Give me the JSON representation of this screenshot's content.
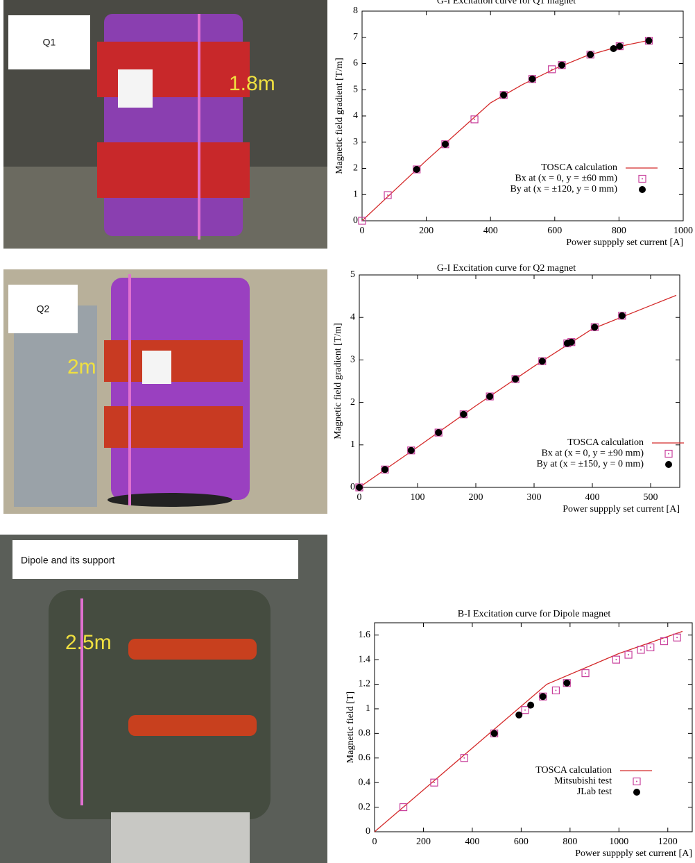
{
  "chart_data": [
    {
      "type": "scatter",
      "title": "G-I Excitation curve for Q1 magnet",
      "x_label": "Power suppply set current [A]",
      "y_label": "Magnetic field gradient [T/m]",
      "xlim": [
        0,
        1000
      ],
      "ylim": [
        0,
        8
      ],
      "xticks": [
        0,
        200,
        400,
        600,
        800,
        1000
      ],
      "yticks": [
        0,
        1,
        2,
        3,
        4,
        5,
        6,
        7,
        8
      ],
      "series": [
        {
          "name": "TOSCA calculation",
          "color": "#d42a2a",
          "marker": "line",
          "x": [
            0,
            100,
            200,
            300,
            400,
            500,
            600,
            700,
            800,
            900
          ],
          "values": [
            0,
            1.15,
            2.3,
            3.4,
            4.5,
            5.2,
            5.8,
            6.3,
            6.65,
            6.9
          ]
        },
        {
          "name": "Bx at (x = 0, y = ±60 mm)",
          "color": "#c8409c",
          "marker": "square",
          "x": [
            0,
            80,
            170,
            259,
            350,
            441,
            530,
            591,
            622,
            711,
            802,
            893
          ],
          "values": [
            0,
            0.98,
            1.96,
            2.92,
            3.87,
            4.8,
            5.41,
            5.78,
            5.94,
            6.34,
            6.66,
            6.87
          ]
        },
        {
          "name": "By at (x = ±120, y = 0 mm)",
          "color": "#000000",
          "marker": "circle",
          "x": [
            170,
            259,
            441,
            530,
            622,
            711,
            783,
            802,
            893
          ],
          "values": [
            1.96,
            2.92,
            4.8,
            5.41,
            5.94,
            6.34,
            6.57,
            6.66,
            6.87
          ]
        }
      ]
    },
    {
      "type": "scatter",
      "title": "G-I Excitation curve for Q2 magnet",
      "x_label": "Power suppply set current [A]",
      "y_label": "Magnetic field gradient [T/m]",
      "xlim": [
        0,
        550
      ],
      "ylim": [
        0,
        5
      ],
      "xticks": [
        0,
        100,
        200,
        300,
        400,
        500
      ],
      "yticks": [
        0,
        1,
        2,
        3,
        4,
        5
      ],
      "series": [
        {
          "name": "TOSCA calculation",
          "color": "#d42a2a",
          "marker": "line",
          "x": [
            0,
            100,
            200,
            300,
            400,
            500,
            544
          ],
          "values": [
            0,
            0.95,
            1.92,
            2.85,
            3.73,
            4.28,
            4.52
          ]
        },
        {
          "name": "Bx at (x = 0, y = ±90 mm)",
          "color": "#c8409c",
          "marker": "square",
          "x": [
            0,
            44,
            89,
            136,
            179,
            224,
            268,
            314,
            357,
            364,
            404,
            451
          ],
          "values": [
            0,
            0.42,
            0.87,
            1.29,
            1.72,
            2.14,
            2.55,
            2.97,
            3.39,
            3.42,
            3.77,
            4.04
          ]
        },
        {
          "name": "By at (x = ±150, y = 0 mm)",
          "color": "#000000",
          "marker": "circle",
          "x": [
            0,
            44,
            89,
            136,
            179,
            224,
            268,
            314,
            357,
            364,
            404,
            451
          ],
          "values": [
            0,
            0.42,
            0.87,
            1.29,
            1.72,
            2.14,
            2.55,
            2.97,
            3.39,
            3.42,
            3.77,
            4.04
          ]
        }
      ]
    },
    {
      "type": "scatter",
      "title": "B-I Excitation curve for Dipole magnet",
      "x_label": "Power suppply set current [A]",
      "y_label": "Magnetic field [T]",
      "xlim": [
        0,
        1300
      ],
      "ylim": [
        0,
        1.7
      ],
      "xticks": [
        0,
        200,
        400,
        600,
        800,
        1000,
        1200
      ],
      "yticks": [
        0,
        0.2,
        0.4,
        0.6,
        0.8,
        1,
        1.2,
        1.4,
        1.6
      ],
      "series": [
        {
          "name": "TOSCA calculation",
          "color": "#d42a2a",
          "marker": "line",
          "x": [
            0,
            705,
            1000,
            1260
          ],
          "values": [
            0,
            1.2,
            1.45,
            1.63
          ]
        },
        {
          "name": "Mitsubishi test",
          "color": "#c8409c",
          "marker": "square",
          "x": [
            118,
            244,
            367,
            490,
            616,
            689,
            742,
            787,
            863,
            989,
            1039,
            1090,
            1129,
            1185,
            1238
          ],
          "values": [
            0.2,
            0.4,
            0.6,
            0.8,
            0.99,
            1.1,
            1.15,
            1.21,
            1.29,
            1.4,
            1.44,
            1.48,
            1.5,
            1.55,
            1.58
          ]
        },
        {
          "name": "JLab test",
          "color": "#000000",
          "marker": "circle",
          "x": [
            490,
            591,
            639,
            689,
            787
          ],
          "values": [
            0.8,
            0.95,
            1.03,
            1.1,
            1.21
          ]
        }
      ]
    }
  ],
  "photos": [
    {
      "label": "Q1",
      "size": "1.8m"
    },
    {
      "label": "Q2",
      "size": "2m"
    },
    {
      "label": "Dipole and its support",
      "size": "2.5m"
    }
  ]
}
